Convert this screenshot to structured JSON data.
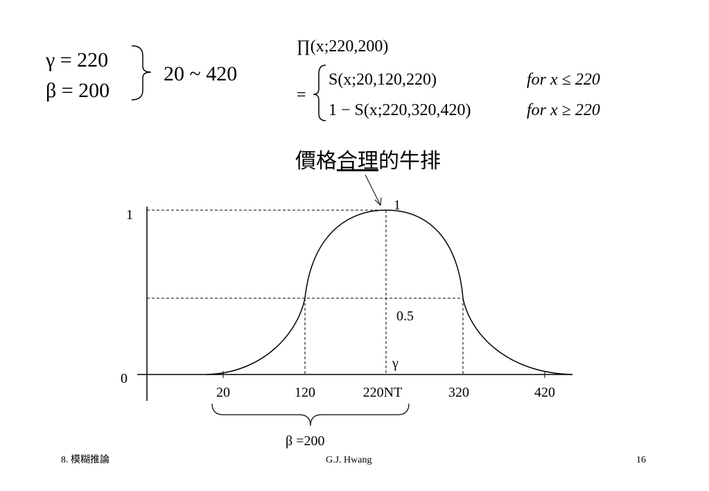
{
  "params": {
    "gamma": "γ = 220",
    "beta": "β = 200",
    "range": "20 ~ 420"
  },
  "formula": {
    "line1": "∏(x;220,200)",
    "eq": "=",
    "line2": "S(x;20,120,220)",
    "cond2": "for x ≤ 220",
    "line3": "1 − S(x;220,320,420)",
    "cond3": "for x ≥ 220"
  },
  "annotation": {
    "before": "價格",
    "underlined": "合理",
    "after": "的牛排"
  },
  "graph": {
    "y_labels": [
      "1",
      "0"
    ],
    "peak_label": "1",
    "half_label": "0.5",
    "gamma_label": "γ",
    "x_labels": [
      "20",
      "120",
      "220NT",
      "320",
      "420"
    ],
    "brace_label": "β =200"
  },
  "footer": {
    "left": "8. 模糊推論",
    "center": "G.J. Hwang",
    "right": "16"
  }
}
